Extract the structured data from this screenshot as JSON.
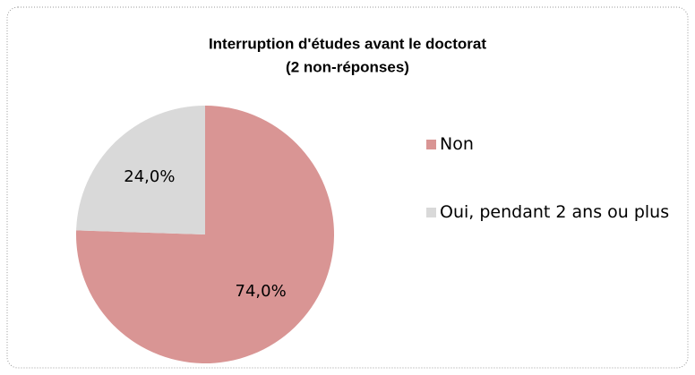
{
  "chart_data": {
    "type": "pie",
    "title": "Interruption d'études avant le doctorat",
    "subtitle": "(2 non-réponses)",
    "categories": [
      "Non",
      "Oui, pendant 2 ans ou plus"
    ],
    "values": [
      74.0,
      24.0
    ],
    "value_labels": [
      "74,0%",
      "24,0%"
    ],
    "colors": [
      "#d99594",
      "#d9d9d9"
    ],
    "legend": "right"
  }
}
